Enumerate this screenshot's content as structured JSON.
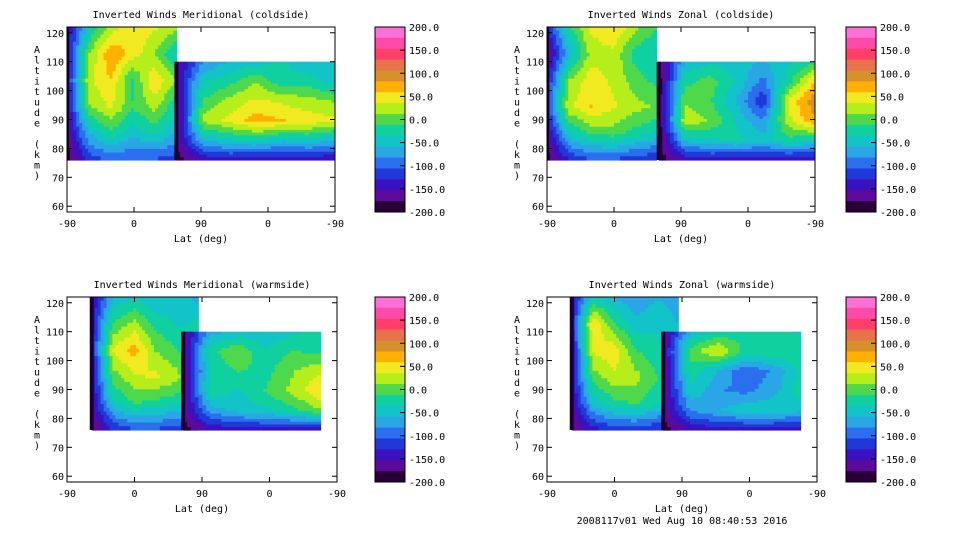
{
  "footer": "2008117v01 Wed Aug 10 08:40:53 2016",
  "colorbar": {
    "labels": [
      "200.0",
      "150.0",
      "100.0",
      "50.0",
      "0.0",
      "-50.0",
      "-100.0",
      "-150.0",
      "-200.0"
    ],
    "colors": [
      "#ff6fd8",
      "#ff4aa8",
      "#ff3f6a",
      "#e8724a",
      "#d8902c",
      "#ffb000",
      "#f2ea20",
      "#b6ee1c",
      "#4fd84c",
      "#10d0a0",
      "#12c4c8",
      "#2aa6e6",
      "#2b6fee",
      "#2038d8",
      "#3a10c0",
      "#5b0a9c",
      "#2a0038"
    ]
  },
  "chart_data": [
    {
      "type": "heatmap",
      "title": "Inverted Winds Meridional (coldside)",
      "xlabel": "Lat (deg)",
      "ylabel": "Altitude (km)",
      "x_ticks": [
        "-90",
        "0",
        "90",
        "0",
        "-90"
      ],
      "y_ticks": [
        "60",
        "70",
        "80",
        "90",
        "100",
        "110",
        "120"
      ],
      "ylim": [
        58,
        122
      ],
      "zlim": [
        -200,
        200
      ],
      "segments": [
        {
          "lat_range": [
            -90,
            57
          ],
          "alt_range": [
            76,
            122
          ],
          "z": [
            [
              -160,
              -40,
              20,
              60,
              40,
              20
            ],
            [
              -150,
              10,
              80,
              50,
              10,
              -40
            ],
            [
              -140,
              30,
              60,
              -20,
              60,
              10
            ],
            [
              -160,
              10,
              40,
              -10,
              20,
              -30
            ],
            [
              -170,
              -60,
              -20,
              -50,
              -30,
              -60
            ],
            [
              -190,
              -120,
              -100,
              -110,
              -110,
              -120
            ]
          ]
        },
        {
          "lat_range": [
            123,
            -90
          ],
          "alt_range": [
            76,
            110
          ],
          "z": [
            [
              -170,
              -80,
              -60,
              -50,
              -30,
              -60,
              -40
            ],
            [
              -160,
              -40,
              -20,
              10,
              -30,
              -20,
              -50
            ],
            [
              -170,
              -10,
              20,
              40,
              30,
              20,
              10
            ],
            [
              -180,
              20,
              40,
              70,
              60,
              50,
              40
            ],
            [
              -170,
              -60,
              -40,
              -30,
              -50,
              -40,
              -60
            ],
            [
              -190,
              -150,
              -140,
              -150,
              -150,
              -150,
              -150
            ]
          ]
        }
      ]
    },
    {
      "type": "heatmap",
      "title": "Inverted Winds Zonal (coldside)",
      "xlabel": "Lat (deg)",
      "ylabel": "Altitude (km)",
      "x_ticks": [
        "-90",
        "0",
        "90",
        "0",
        "-90"
      ],
      "y_ticks": [
        "60",
        "70",
        "80",
        "90",
        "100",
        "110",
        "120"
      ],
      "ylim": [
        58,
        122
      ],
      "zlim": [
        -200,
        200
      ],
      "segments": [
        {
          "lat_range": [
            -90,
            57
          ],
          "alt_range": [
            76,
            122
          ],
          "z": [
            [
              -130,
              -20,
              40,
              60,
              20,
              -10
            ],
            [
              -180,
              -60,
              20,
              30,
              -20,
              -40
            ],
            [
              -140,
              10,
              50,
              30,
              0,
              -20
            ],
            [
              -120,
              30,
              60,
              40,
              20,
              10
            ],
            [
              -160,
              -40,
              -10,
              0,
              -20,
              -40
            ],
            [
              -190,
              -130,
              -110,
              -110,
              -120,
              -130
            ]
          ]
        },
        {
          "lat_range": [
            120,
            -90
          ],
          "alt_range": [
            76,
            110
          ],
          "z": [
            [
              -180,
              -60,
              -40,
              -50,
              -60,
              -40,
              -20
            ],
            [
              -190,
              -20,
              0,
              -40,
              -90,
              -20,
              60
            ],
            [
              -190,
              10,
              -10,
              -60,
              -130,
              40,
              100
            ],
            [
              -190,
              30,
              10,
              -40,
              -80,
              30,
              80
            ],
            [
              -190,
              -50,
              -40,
              -30,
              -50,
              -20,
              -40
            ],
            [
              -190,
              -150,
              -140,
              -150,
              -150,
              -150,
              -150
            ]
          ]
        }
      ]
    },
    {
      "type": "heatmap",
      "title": "Inverted Winds Meridional (warmside)",
      "xlabel": "Lat (deg)",
      "ylabel": "Altitude (km)",
      "x_ticks": [
        "-90",
        "0",
        "90",
        "0",
        "-90"
      ],
      "y_ticks": [
        "60",
        "70",
        "80",
        "90",
        "100",
        "110",
        "120"
      ],
      "ylim": [
        58,
        122
      ],
      "zlim": [
        -200,
        200
      ],
      "segments": [
        {
          "lat_range": [
            -57,
            85
          ],
          "alt_range": [
            76,
            122
          ],
          "z": [
            [
              -160,
              -60,
              -40,
              -60,
              -40,
              -70
            ],
            [
              -140,
              -10,
              20,
              -20,
              -40,
              -30
            ],
            [
              -140,
              40,
              70,
              10,
              -10,
              -40
            ],
            [
              -150,
              0,
              30,
              40,
              20,
              -30
            ],
            [
              -160,
              -40,
              -10,
              -20,
              -30,
              -60
            ],
            [
              -180,
              -130,
              -110,
              -110,
              -120,
              -140
            ]
          ]
        },
        {
          "lat_range": [
            115,
            -68
          ],
          "alt_range": [
            76,
            110
          ],
          "z": [
            [
              -170,
              -70,
              -50,
              -60,
              -40,
              -30
            ],
            [
              -160,
              -20,
              10,
              -30,
              -10,
              -20
            ],
            [
              -170,
              -30,
              -10,
              -20,
              10,
              30
            ],
            [
              -170,
              -20,
              -40,
              -10,
              20,
              60
            ],
            [
              -170,
              -70,
              -50,
              -40,
              -20,
              10
            ],
            [
              -190,
              -150,
              -140,
              -140,
              -140,
              -150
            ]
          ]
        }
      ]
    },
    {
      "type": "heatmap",
      "title": "Inverted Winds Zonal (warmside)",
      "xlabel": "Lat (deg)",
      "ylabel": "Altitude (km)",
      "x_ticks": [
        "-90",
        "0",
        "90",
        "0",
        "-90"
      ],
      "y_ticks": [
        "60",
        "70",
        "80",
        "90",
        "100",
        "110",
        "120"
      ],
      "ylim": [
        58,
        122
      ],
      "zlim": [
        -200,
        200
      ],
      "segments": [
        {
          "lat_range": [
            -57,
            85
          ],
          "alt_range": [
            76,
            122
          ],
          "z": [
            [
              -150,
              -40,
              -60,
              -80,
              -60,
              -70
            ],
            [
              -140,
              60,
              -10,
              -50,
              -40,
              -60
            ],
            [
              -150,
              40,
              50,
              -10,
              -30,
              -40
            ],
            [
              -150,
              0,
              30,
              20,
              -10,
              -40
            ],
            [
              -160,
              -50,
              -20,
              -10,
              -30,
              -60
            ],
            [
              -180,
              -140,
              -120,
              -120,
              -130,
              -140
            ]
          ]
        },
        {
          "lat_range": [
            115,
            -68
          ],
          "alt_range": [
            76,
            110
          ],
          "z": [
            [
              -170,
              -60,
              -30,
              -20,
              -30,
              -40
            ],
            [
              -160,
              0,
              40,
              -20,
              -10,
              -20
            ],
            [
              -170,
              -20,
              -60,
              -100,
              -80,
              -30
            ],
            [
              -170,
              -40,
              -80,
              -90,
              -70,
              -20
            ],
            [
              -170,
              -80,
              -60,
              -40,
              -40,
              -50
            ],
            [
              -190,
              -150,
              -140,
              -140,
              -140,
              -150
            ]
          ]
        }
      ]
    }
  ]
}
